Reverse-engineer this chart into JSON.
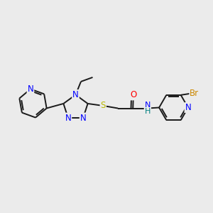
{
  "bg_color": "#ebebeb",
  "bond_color": "#1a1a1a",
  "n_color": "#0000ff",
  "o_color": "#ff0000",
  "s_color": "#b8b800",
  "br_color": "#cc8800",
  "h_color": "#008080",
  "line_width": 1.4,
  "font_size": 8.5,
  "xlim": [
    0,
    10
  ],
  "ylim": [
    0,
    10
  ]
}
